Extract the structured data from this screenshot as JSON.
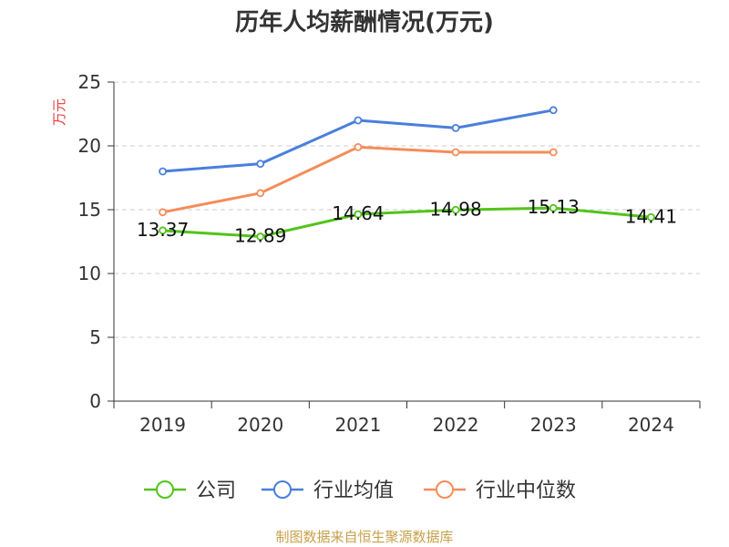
{
  "chart_data": {
    "type": "line",
    "title": "历年人均薪酬情况(万元)",
    "ylabel": "万元",
    "xlabel": "",
    "categories": [
      "2019",
      "2020",
      "2021",
      "2022",
      "2023",
      "2024"
    ],
    "ylim": [
      0,
      25
    ],
    "yticks": [
      0,
      5,
      10,
      15,
      20,
      25
    ],
    "grid": true,
    "legend_position": "bottom",
    "series": [
      {
        "name": "公司",
        "color": "#52c41a",
        "values": [
          13.37,
          12.89,
          14.64,
          14.98,
          15.13,
          14.41
        ],
        "labels": [
          "13.37",
          "12.89",
          "14.64",
          "14.98",
          "15.13",
          "14.41"
        ]
      },
      {
        "name": "行业均值",
        "color": "#4a7fdb",
        "values": [
          18.0,
          18.6,
          22.0,
          21.4,
          22.8,
          null
        ]
      },
      {
        "name": "行业中位数",
        "color": "#f58c5a",
        "values": [
          14.8,
          16.3,
          19.9,
          19.5,
          19.5,
          null
        ]
      }
    ]
  },
  "source": "制图数据来自恒生聚源数据库",
  "colors": {
    "ylabel": "#e03c3c",
    "axis": "#333333",
    "grid": "#cccccc"
  }
}
